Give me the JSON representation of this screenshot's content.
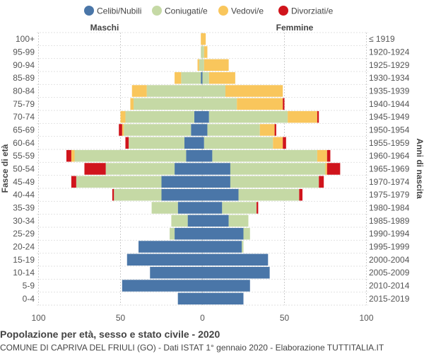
{
  "chart_data": {
    "type": "population-pyramid",
    "legend": [
      {
        "key": "celibi",
        "label": "Celibi/Nubili",
        "color": "#4a76a8"
      },
      {
        "key": "coniugati",
        "label": "Coniugati/e",
        "color": "#c5d9a5"
      },
      {
        "key": "vedovi",
        "label": "Vedovi/e",
        "color": "#f9c65c"
      },
      {
        "key": "divorziati",
        "label": "Divorziati/e",
        "color": "#d0141c"
      }
    ],
    "left_heading": "Maschi",
    "right_heading": "Femmine",
    "ylabel_left": "Fasce di età",
    "ylabel_right": "Anni di nascita",
    "x_ticks": [
      {
        "value": -100,
        "label": "100"
      },
      {
        "value": -50,
        "label": "50"
      },
      {
        "value": 0,
        "label": "0"
      },
      {
        "value": 50,
        "label": "50"
      },
      {
        "value": 100,
        "label": "100"
      }
    ],
    "xlim": [
      -100,
      100
    ],
    "age_groups": [
      "100+",
      "95-99",
      "90-94",
      "85-89",
      "80-84",
      "75-79",
      "70-74",
      "65-69",
      "60-64",
      "55-59",
      "50-54",
      "45-49",
      "40-44",
      "35-39",
      "30-34",
      "25-29",
      "20-24",
      "15-19",
      "10-14",
      "5-9",
      "0-4"
    ],
    "birth_years": [
      "≤ 1919",
      "1920-1924",
      "1925-1929",
      "1930-1934",
      "1935-1939",
      "1940-1944",
      "1945-1949",
      "1950-1954",
      "1955-1959",
      "1960-1964",
      "1965-1969",
      "1970-1974",
      "1975-1979",
      "1980-1984",
      "1985-1989",
      "1990-1994",
      "1995-1999",
      "2000-2004",
      "2005-2009",
      "2010-2014",
      "2015-2019"
    ],
    "males": {
      "celibi": [
        0,
        0,
        0,
        1,
        0,
        0,
        5,
        7,
        11,
        10,
        17,
        25,
        25,
        15,
        9,
        17,
        39,
        46,
        32,
        49,
        15
      ],
      "coniugati": [
        0,
        1,
        2,
        12,
        34,
        42,
        42,
        41,
        34,
        68,
        42,
        52,
        29,
        16,
        10,
        3,
        0,
        0,
        0,
        0,
        0
      ],
      "vedovi": [
        1,
        0,
        1,
        4,
        9,
        2,
        3,
        1,
        0,
        2,
        0,
        0,
        0,
        0,
        0,
        0,
        0,
        0,
        0,
        0,
        0
      ],
      "divorziati": [
        0,
        0,
        0,
        0,
        0,
        0,
        0,
        2,
        2,
        3,
        13,
        3,
        1,
        0,
        0,
        0,
        0,
        0,
        0,
        0,
        0
      ]
    },
    "females": {
      "celibi": [
        0,
        0,
        0,
        0,
        0,
        0,
        4,
        3,
        1,
        6,
        17,
        17,
        22,
        12,
        16,
        25,
        24,
        40,
        41,
        29,
        25
      ],
      "coniugati": [
        0,
        1,
        1,
        4,
        14,
        21,
        48,
        32,
        42,
        64,
        58,
        54,
        37,
        21,
        12,
        4,
        1,
        0,
        0,
        0,
        0
      ],
      "vedovi": [
        2,
        2,
        15,
        16,
        35,
        28,
        18,
        9,
        6,
        6,
        1,
        0,
        0,
        0,
        0,
        0,
        0,
        0,
        0,
        0,
        0
      ],
      "divorziati": [
        0,
        0,
        0,
        0,
        0,
        1,
        1,
        1,
        2,
        2,
        8,
        3,
        2,
        1,
        0,
        0,
        0,
        0,
        0,
        0,
        0
      ]
    }
  },
  "footer": {
    "title": "Popolazione per età, sesso e stato civile - 2020",
    "subtitle": "COMUNE DI CAPRIVA DEL FRIULI (GO) - Dati ISTAT 1° gennaio 2020 - Elaborazione TUTTITALIA.IT"
  }
}
